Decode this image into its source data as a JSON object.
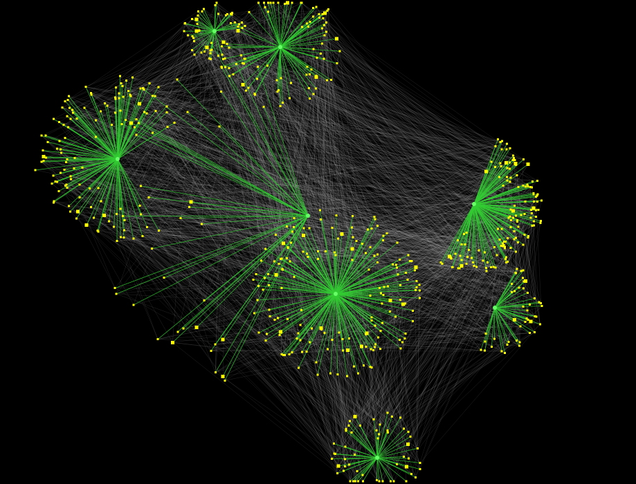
{
  "graph": {
    "background_color": "#000000",
    "node_color": "#ffff00",
    "hub_edge_color": "#33cc33",
    "cross_edge_color": "#c8c8c8",
    "clusters": [
      {
        "id": "top-left",
        "leaf_count": 45
      },
      {
        "id": "top-center",
        "leaf_count": 85
      },
      {
        "id": "left",
        "leaf_count": 120
      },
      {
        "id": "center",
        "leaf_count": 40
      },
      {
        "id": "center-bottom",
        "leaf_count": 170
      },
      {
        "id": "right",
        "leaf_count": 140
      },
      {
        "id": "right-lower",
        "leaf_count": 45
      },
      {
        "id": "bottom",
        "leaf_count": 55
      }
    ]
  }
}
